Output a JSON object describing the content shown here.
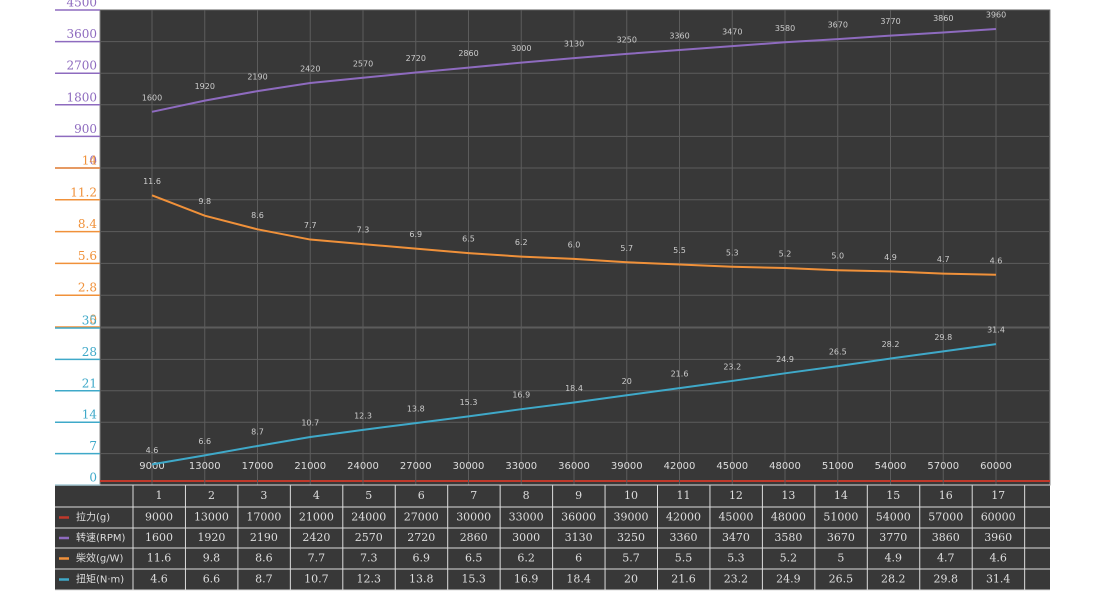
{
  "chart_data": {
    "type": "line",
    "grid": true,
    "categories": [
      "1",
      "2",
      "3",
      "4",
      "5",
      "6",
      "7",
      "8",
      "9",
      "10",
      "11",
      "12",
      "13",
      "14",
      "15",
      "16",
      "17"
    ],
    "series": [
      {
        "name": "拉力(g)",
        "color": "#c0392b",
        "values": [
          9000,
          13000,
          17000,
          21000,
          24000,
          27000,
          30000,
          33000,
          36000,
          39000,
          42000,
          45000,
          48000,
          51000,
          54000,
          57000,
          60000
        ]
      },
      {
        "name": "转速(RPM)",
        "color": "#8e6bbf",
        "values": [
          1600,
          1920,
          2190,
          2420,
          2570,
          2720,
          2860,
          3000,
          3130,
          3250,
          3360,
          3470,
          3580,
          3670,
          3770,
          3860,
          3960
        ],
        "ylim": [
          0,
          4500
        ],
        "yticks": [
          0,
          900,
          1800,
          2700,
          3600,
          4500
        ]
      },
      {
        "name": "柴效(g/W)",
        "color": "#f0913a",
        "values": [
          11.6,
          9.8,
          8.6,
          7.7,
          7.3,
          6.9,
          6.5,
          6.2,
          6,
          5.7,
          5.5,
          5.3,
          5.2,
          5,
          4.9,
          4.7,
          4.6
        ],
        "value_labels": [
          "11.6",
          "9.8",
          "8.6",
          "7.7",
          "7.3",
          "6.9",
          "6.5",
          "6.2",
          "6.0",
          "5.7",
          "5.5",
          "5.3",
          "5.2",
          "5.0",
          "4.9",
          "4.7",
          "4.6"
        ],
        "ylim": [
          0,
          14
        ],
        "yticks": [
          0,
          2.8,
          5.6,
          8.4,
          11.2,
          14
        ]
      },
      {
        "name": "扭矩(N·m)",
        "color": "#3fa9c9",
        "values": [
          4.6,
          6.6,
          8.7,
          10.7,
          12.3,
          13.8,
          15.3,
          16.9,
          18.4,
          20,
          21.6,
          23.2,
          24.9,
          26.5,
          28.2,
          29.8,
          31.4
        ],
        "ylim": [
          0,
          35
        ],
        "yticks": [
          0,
          7,
          14,
          21,
          28,
          35
        ]
      }
    ]
  }
}
